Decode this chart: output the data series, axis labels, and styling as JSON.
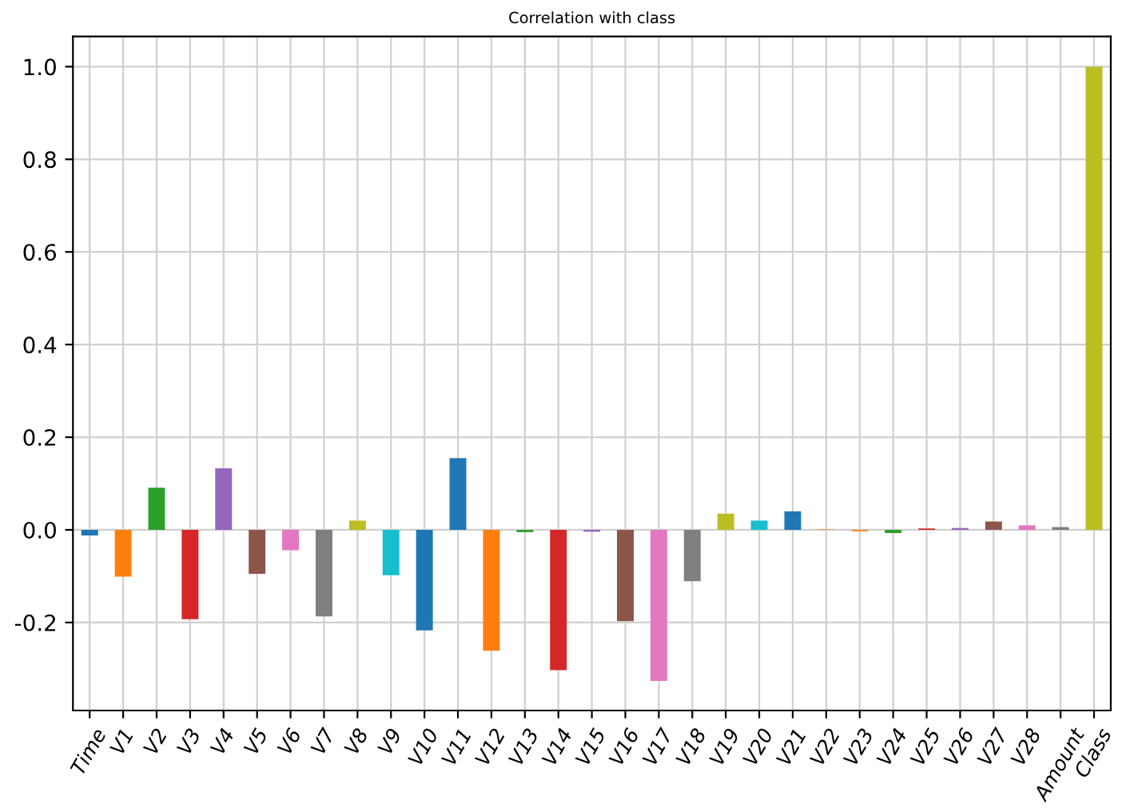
{
  "chart_data": {
    "type": "bar",
    "title": "Correlation with class",
    "categories": [
      "Time",
      "V1",
      "V2",
      "V3",
      "V4",
      "V5",
      "V6",
      "V7",
      "V8",
      "V9",
      "V10",
      "V11",
      "V12",
      "V13",
      "V14",
      "V15",
      "V16",
      "V17",
      "V18",
      "V19",
      "V20",
      "V21",
      "V22",
      "V23",
      "V24",
      "V25",
      "V26",
      "V27",
      "V28",
      "Amount",
      "Class"
    ],
    "values": [
      -0.012,
      -0.101,
      0.091,
      -0.193,
      0.133,
      -0.095,
      -0.044,
      -0.187,
      0.02,
      -0.098,
      -0.217,
      0.155,
      -0.261,
      -0.005,
      -0.303,
      -0.004,
      -0.197,
      -0.326,
      -0.111,
      0.035,
      0.02,
      0.04,
      0.001,
      -0.003,
      -0.007,
      0.003,
      0.004,
      0.018,
      0.01,
      0.006,
      1.0
    ],
    "colors": [
      "#1f77b4",
      "#ff7f0e",
      "#2ca02c",
      "#d62728",
      "#9467bd",
      "#8c564b",
      "#e377c2",
      "#7f7f7f",
      "#bcbd22",
      "#17becf",
      "#1f77b4",
      "#1f77b4",
      "#ff7f0e",
      "#2ca02c",
      "#d62728",
      "#9467bd",
      "#8c564b",
      "#e377c2",
      "#7f7f7f",
      "#bcbd22",
      "#17becf",
      "#1f77b4",
      "#ff7f0e",
      "#ff7f0e",
      "#2ca02c",
      "#d62728",
      "#9467bd",
      "#8c564b",
      "#e377c2",
      "#7f7f7f",
      "#bcbd22"
    ],
    "ylim": [
      -0.39,
      1.065
    ],
    "yticks": [
      {
        "value": -0.2,
        "label": "-0.2"
      },
      "0.0",
      0.2,
      0.4,
      0.6,
      0.8,
      {
        "value": 1.0,
        "label": "1.0"
      }
    ],
    "grid": true
  }
}
